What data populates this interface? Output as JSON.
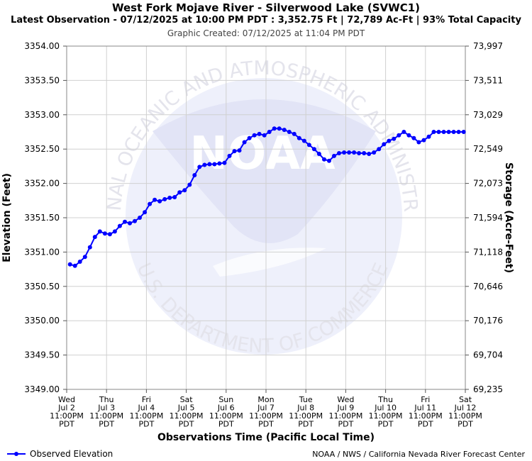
{
  "header": {
    "title": "West Fork Mojave River - Silverwood Lake (SVWC1)",
    "subtitle": "Latest Observation - 07/12/2025 at 10:00 PM PDT : 3,352.75 Ft | 72,789 Ac-Ft | 93% Total Capacity",
    "created": "Graphic Created: 07/12/2025 at 11:04 PM PDT"
  },
  "watermark": {
    "logo_text": "NOAA",
    "ring_top": "NATIONAL OCEANIC AND ATMOSPHERIC ADMINISTRATION",
    "ring_bottom": "U.S. DEPARTMENT OF COMMERCE"
  },
  "legend": {
    "label": "Observed Elevation"
  },
  "credit": "NOAA / NWS / California Nevada River Forecast Center",
  "colors": {
    "series": "#0000ff",
    "grid": "#d0d0d0",
    "watermark": "#e8e8f7"
  },
  "chart_data": {
    "type": "line",
    "xlabel": "Observations Time (Pacific Local Time)",
    "ylabel": "Elevation (Feet)",
    "y2label": "Storage (Acre-Feet)",
    "ylim": [
      3349.0,
      3354.0
    ],
    "yticks": [
      "3349.00",
      "3349.50",
      "3350.00",
      "3350.50",
      "3351.00",
      "3351.50",
      "3352.00",
      "3352.50",
      "3353.00",
      "3353.50",
      "3354.00"
    ],
    "y2ticks": [
      "69,235",
      "69,704",
      "70,176",
      "70,646",
      "71,118",
      "71,594",
      "72,073",
      "72,549",
      "73,029",
      "73,511",
      "73,997"
    ],
    "xticks": [
      [
        "Wed",
        "Jul 2",
        "11:00PM",
        "PDT"
      ],
      [
        "Thu",
        "Jul 3",
        "11:00PM",
        "PDT"
      ],
      [
        "Fri",
        "Jul 4",
        "11:00PM",
        "PDT"
      ],
      [
        "Sat",
        "Jul 5",
        "11:00PM",
        "PDT"
      ],
      [
        "Sun",
        "Jul 6",
        "11:00PM",
        "PDT"
      ],
      [
        "Mon",
        "Jul 7",
        "11:00PM",
        "PDT"
      ],
      [
        "Tue",
        "Jul 8",
        "11:00PM",
        "PDT"
      ],
      [
        "Wed",
        "Jul 9",
        "11:00PM",
        "PDT"
      ],
      [
        "Thu",
        "Jul 10",
        "11:00PM",
        "PDT"
      ],
      [
        "Fri",
        "Jul 11",
        "11:00PM",
        "PDT"
      ],
      [
        "Sat",
        "Jul 12",
        "11:00PM",
        "PDT"
      ]
    ],
    "grid": true,
    "legend_position": "bottom-left",
    "series": [
      {
        "name": "Observed Elevation",
        "x": [
          "07/03 01:00",
          "07/03 04:00",
          "07/03 07:00",
          "07/03 10:00",
          "07/03 13:00",
          "07/03 16:00",
          "07/03 19:00",
          "07/03 22:00",
          "07/04 01:00",
          "07/04 04:00",
          "07/04 07:00",
          "07/04 10:00",
          "07/04 13:00",
          "07/04 16:00",
          "07/04 19:00",
          "07/04 22:00",
          "07/05 01:00",
          "07/05 04:00",
          "07/05 07:00",
          "07/05 10:00",
          "07/05 13:00",
          "07/05 16:00",
          "07/05 19:00",
          "07/05 22:00",
          "07/06 01:00",
          "07/06 04:00",
          "07/06 07:00",
          "07/06 10:00",
          "07/06 13:00",
          "07/06 16:00",
          "07/06 19:00",
          "07/06 22:00",
          "07/07 01:00",
          "07/07 04:00",
          "07/07 07:00",
          "07/07 10:00",
          "07/07 13:00",
          "07/07 16:00",
          "07/07 19:00",
          "07/07 22:00",
          "07/08 01:00",
          "07/08 04:00",
          "07/08 07:00",
          "07/08 10:00",
          "07/08 13:00",
          "07/08 16:00",
          "07/08 19:00",
          "07/08 22:00",
          "07/09 01:00",
          "07/09 04:00",
          "07/09 07:00",
          "07/09 10:00",
          "07/09 13:00",
          "07/09 16:00",
          "07/09 19:00",
          "07/09 22:00",
          "07/10 01:00",
          "07/10 04:00",
          "07/10 07:00",
          "07/10 10:00",
          "07/10 13:00",
          "07/10 16:00",
          "07/10 19:00",
          "07/10 22:00",
          "07/11 01:00",
          "07/11 04:00",
          "07/11 07:00",
          "07/11 10:00",
          "07/11 13:00",
          "07/11 16:00",
          "07/11 19:00",
          "07/11 22:00",
          "07/12 01:00",
          "07/12 04:00",
          "07/12 07:00",
          "07/12 10:00",
          "07/12 13:00",
          "07/12 16:00",
          "07/12 19:00",
          "07/12 22:00"
        ],
        "y": [
          3350.82,
          3350.8,
          3350.86,
          3350.93,
          3351.07,
          3351.22,
          3351.3,
          3351.27,
          3351.26,
          3351.3,
          3351.38,
          3351.44,
          3351.42,
          3351.45,
          3351.5,
          3351.58,
          3351.7,
          3351.76,
          3351.74,
          3351.77,
          3351.79,
          3351.8,
          3351.87,
          3351.9,
          3351.98,
          3352.12,
          3352.24,
          3352.27,
          3352.28,
          3352.28,
          3352.29,
          3352.3,
          3352.4,
          3352.47,
          3352.48,
          3352.6,
          3352.66,
          3352.7,
          3352.72,
          3352.7,
          3352.75,
          3352.8,
          3352.8,
          3352.78,
          3352.75,
          3352.72,
          3352.66,
          3352.62,
          3352.56,
          3352.5,
          3352.43,
          3352.35,
          3352.33,
          3352.4,
          3352.44,
          3352.45,
          3352.45,
          3352.45,
          3352.44,
          3352.44,
          3352.43,
          3352.45,
          3352.5,
          3352.57,
          3352.62,
          3352.65,
          3352.7,
          3352.75,
          3352.7,
          3352.66,
          3352.6,
          3352.63,
          3352.68,
          3352.75,
          3352.75,
          3352.75,
          3352.75,
          3352.75,
          3352.75,
          3352.75
        ]
      }
    ]
  }
}
